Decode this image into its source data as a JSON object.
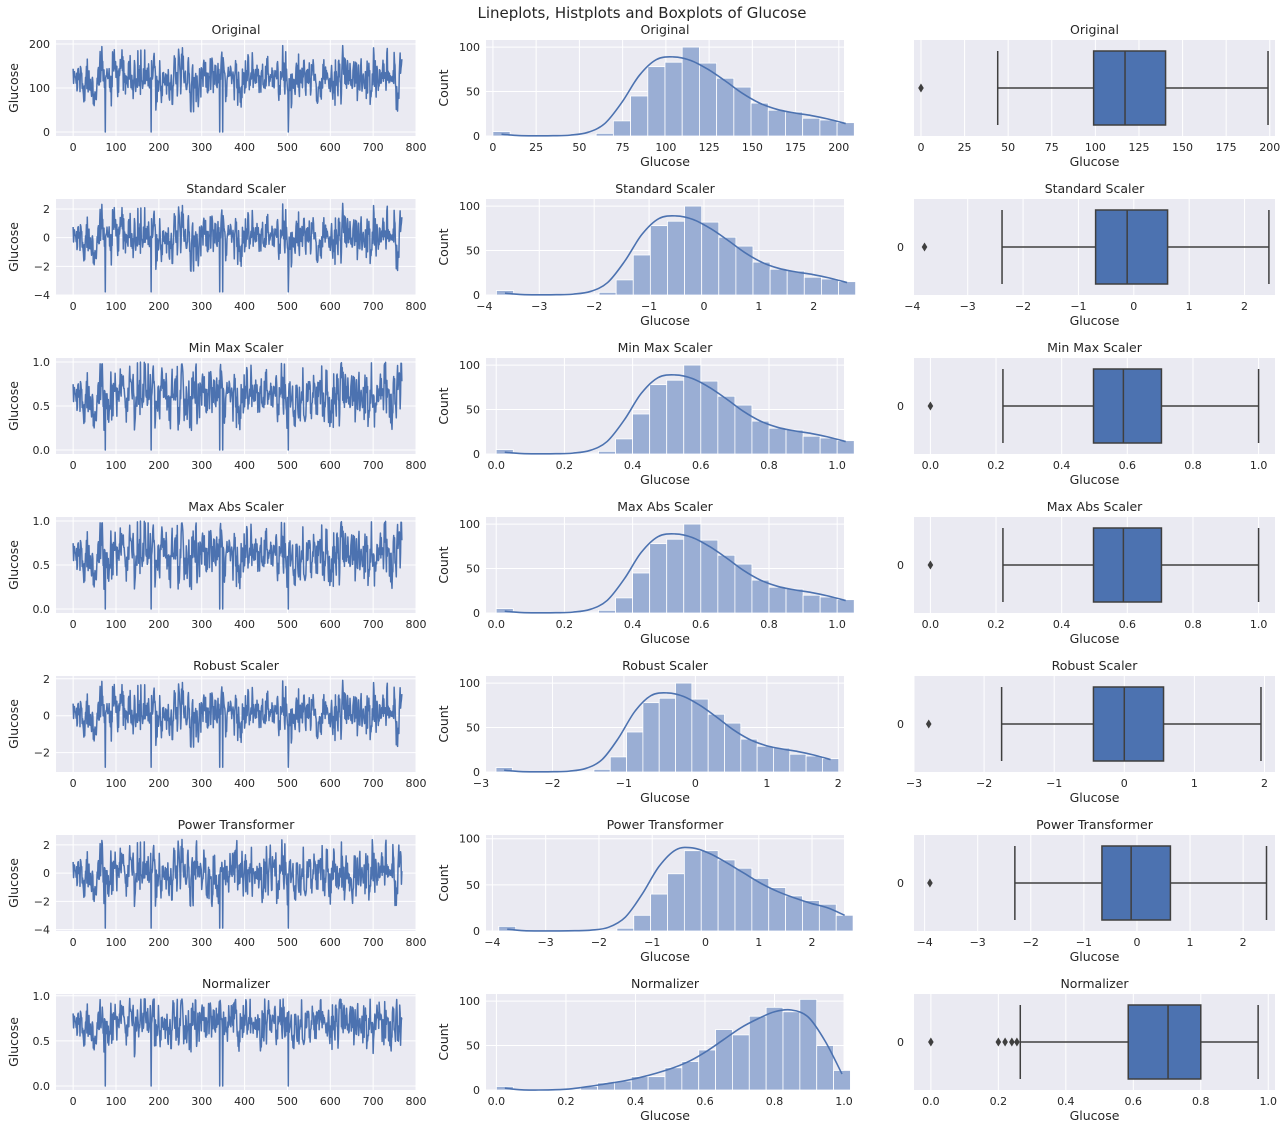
{
  "figure_title": "Lineplots, Histplots and Boxplots of Glucose",
  "colors": {
    "line": "#4c72b0",
    "hist_fill": "#9aaed4",
    "box_fill": "#4c72b0",
    "box_edge": "#3f3f3f",
    "panel_bg": "#eaeaf2",
    "grid": "#ffffff"
  },
  "chart_data": [
    {
      "type": "line",
      "row": 0,
      "title": "Original",
      "ylabel": "Glucose",
      "xlim": [
        -40,
        800
      ],
      "ylim": [
        -9,
        209
      ],
      "xticks": [
        0,
        100,
        200,
        300,
        400,
        500,
        600,
        700,
        800
      ],
      "yticks": [
        0,
        100,
        200
      ],
      "ytick_labels": [
        "0",
        "100",
        "200"
      ],
      "xtick_labels": [
        "0",
        "100",
        "200",
        "300",
        "400",
        "500",
        "600",
        "700",
        "800"
      ],
      "n": 768,
      "center": 120,
      "spread": 27,
      "min": 44,
      "max": 199,
      "zeros_at": [
        75,
        182,
        342,
        349,
        502
      ]
    },
    {
      "type": "line",
      "row": 1,
      "title": "Standard Scaler",
      "ylabel": "Glucose",
      "xlim": [
        -40,
        800
      ],
      "ylim": [
        -4.0,
        2.7
      ],
      "xticks": [
        0,
        100,
        200,
        300,
        400,
        500,
        600,
        700,
        800
      ],
      "yticks": [
        -4,
        -2,
        0,
        2
      ],
      "ytick_labels": [
        "−4",
        "−2",
        "0",
        "2"
      ],
      "xtick_labels": [
        "0",
        "100",
        "200",
        "300",
        "400",
        "500",
        "600",
        "700",
        "800"
      ],
      "n": 768,
      "center": 0,
      "spread": 0.85,
      "min": -2.4,
      "max": 2.44,
      "zeros_at": [
        75,
        182,
        342,
        349,
        502
      ],
      "zero_value": -3.78
    },
    {
      "type": "line",
      "row": 2,
      "title": "Min Max Scaler",
      "ylabel": "Glucose",
      "xlim": [
        -40,
        800
      ],
      "ylim": [
        -0.045,
        1.045
      ],
      "xticks": [
        0,
        100,
        200,
        300,
        400,
        500,
        600,
        700,
        800
      ],
      "yticks": [
        0,
        0.5,
        1
      ],
      "ytick_labels": [
        "0.0",
        "0.5",
        "1.0"
      ],
      "xtick_labels": [
        "0",
        "100",
        "200",
        "300",
        "400",
        "500",
        "600",
        "700",
        "800"
      ],
      "n": 768,
      "center": 0.607,
      "spread": 0.16,
      "min": 0.22,
      "max": 1.0,
      "zeros_at": [
        75,
        182,
        342,
        349,
        502
      ],
      "zero_value": 0
    },
    {
      "type": "line",
      "row": 3,
      "title": "Max Abs Scaler",
      "ylabel": "Glucose",
      "xlim": [
        -40,
        800
      ],
      "ylim": [
        -0.045,
        1.045
      ],
      "xticks": [
        0,
        100,
        200,
        300,
        400,
        500,
        600,
        700,
        800
      ],
      "yticks": [
        0,
        0.5,
        1
      ],
      "ytick_labels": [
        "0.0",
        "0.5",
        "1.0"
      ],
      "xtick_labels": [
        "0",
        "100",
        "200",
        "300",
        "400",
        "500",
        "600",
        "700",
        "800"
      ],
      "n": 768,
      "center": 0.607,
      "spread": 0.16,
      "min": 0.22,
      "max": 1.0,
      "zeros_at": [
        75,
        182,
        342,
        349,
        502
      ],
      "zero_value": 0
    },
    {
      "type": "line",
      "row": 4,
      "title": "Robust Scaler",
      "ylabel": "Glucose",
      "xlim": [
        -40,
        800
      ],
      "ylim": [
        -3.05,
        2.15
      ],
      "xticks": [
        0,
        100,
        200,
        300,
        400,
        500,
        600,
        700,
        800
      ],
      "yticks": [
        -2,
        0,
        2
      ],
      "ytick_labels": [
        "−2",
        "0",
        "2"
      ],
      "xtick_labels": [
        "0",
        "100",
        "200",
        "300",
        "400",
        "500",
        "600",
        "700",
        "800"
      ],
      "n": 768,
      "center": 0.08,
      "spread": 0.65,
      "min": -1.75,
      "max": 1.95,
      "zeros_at": [
        75,
        182,
        342,
        349,
        502
      ],
      "zero_value": -2.79
    },
    {
      "type": "line",
      "row": 5,
      "title": "Power Transformer",
      "ylabel": "Glucose",
      "xlim": [
        -40,
        800
      ],
      "ylim": [
        -4.1,
        2.7
      ],
      "xticks": [
        0,
        100,
        200,
        300,
        400,
        500,
        600,
        700,
        800
      ],
      "yticks": [
        -4,
        -2,
        0,
        2
      ],
      "ytick_labels": [
        "−4",
        "−2",
        "0",
        "2"
      ],
      "xtick_labels": [
        "0",
        "100",
        "200",
        "300",
        "400",
        "500",
        "600",
        "700",
        "800"
      ],
      "n": 768,
      "center": 0,
      "spread": 0.9,
      "min": -2.4,
      "max": 2.45,
      "zeros_at": [
        75,
        182,
        342,
        349,
        502
      ],
      "zero_value": -3.9
    },
    {
      "type": "line",
      "row": 6,
      "title": "Normalizer",
      "ylabel": "Glucose",
      "xlim": [
        -40,
        800
      ],
      "ylim": [
        -0.045,
        1.02
      ],
      "xticks": [
        0,
        100,
        200,
        300,
        400,
        500,
        600,
        700,
        800
      ],
      "yticks": [
        0,
        0.5,
        1
      ],
      "ytick_labels": [
        "0.0",
        "0.5",
        "1.0"
      ],
      "xtick_labels": [
        "0",
        "100",
        "200",
        "300",
        "400",
        "500",
        "600",
        "700",
        "800"
      ],
      "n": 768,
      "center": 0.69,
      "spread": 0.13,
      "min": 0.2,
      "max": 0.97,
      "zeros_at": [
        75,
        182,
        342,
        349,
        502
      ],
      "zero_value": 0
    },
    {
      "type": "bar",
      "row": 0,
      "title": "Original",
      "xlabel": "Glucose",
      "ylabel": "Count",
      "xlim": [
        -4,
        203
      ],
      "ylim": [
        0,
        108
      ],
      "xticks": [
        0,
        25,
        50,
        75,
        100,
        125,
        150,
        175,
        200
      ],
      "xtick_labels": [
        "0",
        "25",
        "50",
        "75",
        "100",
        "125",
        "150",
        "175",
        "200"
      ],
      "yticks": [
        0,
        50,
        100
      ],
      "ytick_labels": [
        "0",
        "50",
        "100"
      ],
      "bin_start": 0,
      "bin_width": 9.95,
      "counts": [
        5,
        0,
        0,
        0,
        0,
        1,
        3,
        17,
        45,
        78,
        83,
        100,
        82,
        65,
        55,
        37,
        29,
        27,
        20,
        18,
        15
      ],
      "kde": [
        2,
        0.5,
        0.2,
        0.3,
        1,
        4,
        14,
        38,
        68,
        86,
        89,
        85,
        75,
        62,
        48,
        37,
        30,
        26,
        23,
        19,
        14
      ]
    },
    {
      "type": "bar",
      "row": 1,
      "title": "Standard Scaler",
      "xlabel": "Glucose",
      "ylabel": "Count",
      "xlim": [
        -3.97,
        2.55
      ],
      "ylim": [
        0,
        108
      ],
      "xticks": [
        -4,
        -3,
        -2,
        -1,
        0,
        1,
        2
      ],
      "xtick_labels": [
        "−4",
        "−3",
        "−2",
        "−1",
        "0",
        "1",
        "2"
      ],
      "yticks": [
        0,
        50,
        100
      ],
      "ytick_labels": [
        "0",
        "50",
        "100"
      ],
      "bin_start": -3.78,
      "bin_width": 0.3115,
      "counts": [
        5,
        0,
        0,
        0,
        0,
        1,
        3,
        17,
        45,
        78,
        83,
        100,
        82,
        65,
        55,
        37,
        29,
        27,
        20,
        18,
        15
      ],
      "kde": [
        2,
        0.5,
        0.2,
        0.3,
        1,
        4,
        14,
        38,
        68,
        86,
        89,
        85,
        75,
        62,
        48,
        37,
        30,
        26,
        23,
        19,
        14
      ]
    },
    {
      "type": "bar",
      "row": 2,
      "title": "Min Max Scaler",
      "xlabel": "Glucose",
      "ylabel": "Count",
      "xlim": [
        -0.03,
        1.02
      ],
      "ylim": [
        0,
        108
      ],
      "xticks": [
        0,
        0.2,
        0.4,
        0.6,
        0.8,
        1.0
      ],
      "xtick_labels": [
        "0.0",
        "0.2",
        "0.4",
        "0.6",
        "0.8",
        "1.0"
      ],
      "yticks": [
        0,
        50,
        100
      ],
      "ytick_labels": [
        "0",
        "50",
        "100"
      ],
      "bin_start": 0,
      "bin_width": 0.05,
      "counts": [
        5,
        0,
        0,
        0,
        0,
        1,
        3,
        17,
        45,
        78,
        83,
        100,
        82,
        65,
        55,
        37,
        29,
        27,
        20,
        18,
        15
      ],
      "kde": [
        2,
        0.5,
        0.2,
        0.3,
        1,
        4,
        14,
        38,
        68,
        86,
        89,
        85,
        75,
        62,
        48,
        37,
        30,
        26,
        23,
        19,
        14
      ]
    },
    {
      "type": "bar",
      "row": 3,
      "title": "Max Abs Scaler",
      "xlabel": "Glucose",
      "ylabel": "Count",
      "xlim": [
        -0.03,
        1.02
      ],
      "ylim": [
        0,
        108
      ],
      "xticks": [
        0,
        0.2,
        0.4,
        0.6,
        0.8,
        1.0
      ],
      "xtick_labels": [
        "0.0",
        "0.2",
        "0.4",
        "0.6",
        "0.8",
        "1.0"
      ],
      "yticks": [
        0,
        50,
        100
      ],
      "ytick_labels": [
        "0",
        "50",
        "100"
      ],
      "bin_start": 0,
      "bin_width": 0.05,
      "counts": [
        5,
        0,
        0,
        0,
        0,
        1,
        3,
        17,
        45,
        78,
        83,
        100,
        82,
        65,
        55,
        37,
        29,
        27,
        20,
        18,
        15
      ],
      "kde": [
        2,
        0.5,
        0.2,
        0.3,
        1,
        4,
        14,
        38,
        68,
        86,
        89,
        85,
        75,
        62,
        48,
        37,
        30,
        26,
        23,
        19,
        14
      ]
    },
    {
      "type": "bar",
      "row": 4,
      "title": "Robust Scaler",
      "xlabel": "Glucose",
      "ylabel": "Count",
      "xlim": [
        -2.93,
        2.08
      ],
      "ylim": [
        0,
        108
      ],
      "xticks": [
        -3,
        -2,
        -1,
        0,
        1,
        2
      ],
      "xtick_labels": [
        "−3",
        "−2",
        "−1",
        "0",
        "1",
        "2"
      ],
      "yticks": [
        0,
        50,
        100
      ],
      "ytick_labels": [
        "0",
        "50",
        "100"
      ],
      "bin_start": -2.79,
      "bin_width": 0.2284,
      "counts": [
        5,
        0,
        0,
        0,
        0,
        1,
        3,
        17,
        45,
        78,
        83,
        100,
        82,
        65,
        55,
        37,
        29,
        27,
        20,
        18,
        15
      ],
      "kde": [
        2,
        0.5,
        0.2,
        0.3,
        1,
        4,
        14,
        38,
        68,
        86,
        89,
        85,
        75,
        62,
        48,
        37,
        30,
        26,
        23,
        19,
        14
      ]
    },
    {
      "type": "bar",
      "row": 5,
      "title": "Power Transformer",
      "xlabel": "Glucose",
      "ylabel": "Count",
      "xlim": [
        -4.12,
        2.6
      ],
      "ylim": [
        0,
        104
      ],
      "xticks": [
        -4,
        -3,
        -2,
        -1,
        0,
        1,
        2
      ],
      "xtick_labels": [
        "−4",
        "−3",
        "−2",
        "−1",
        "0",
        "1",
        "2"
      ],
      "yticks": [
        0,
        50,
        100
      ],
      "ytick_labels": [
        "0",
        "50",
        "100"
      ],
      "bin_start": -3.88,
      "bin_width": 0.3167,
      "counts": [
        5,
        0,
        0,
        0,
        0,
        0,
        1,
        3,
        17,
        40,
        62,
        87,
        87,
        77,
        68,
        57,
        47,
        38,
        33,
        29,
        17
      ],
      "kde": [
        2,
        0.3,
        0.1,
        0.1,
        0.3,
        1,
        4,
        15,
        40,
        70,
        88,
        90,
        84,
        74,
        63,
        52,
        43,
        36,
        30,
        25,
        17
      ]
    },
    {
      "type": "bar",
      "row": 6,
      "title": "Normalizer",
      "xlabel": "Glucose",
      "ylabel": "Count",
      "xlim": [
        -0.03,
        1.0
      ],
      "ylim": [
        0,
        108
      ],
      "xticks": [
        0,
        0.2,
        0.4,
        0.6,
        0.8,
        1.0
      ],
      "xtick_labels": [
        "0.0",
        "0.2",
        "0.4",
        "0.6",
        "0.8",
        "1.0"
      ],
      "yticks": [
        0,
        50,
        100
      ],
      "ytick_labels": [
        "0",
        "50",
        "100"
      ],
      "bin_start": 0,
      "bin_width": 0.0485,
      "counts": [
        4,
        0,
        0,
        0,
        1,
        4,
        8,
        10,
        15,
        15,
        25,
        32,
        45,
        68,
        62,
        83,
        93,
        88,
        102,
        50,
        22
      ],
      "kde": [
        2,
        0.2,
        0,
        0.3,
        1.5,
        4,
        7,
        10,
        14,
        19,
        25,
        33,
        44,
        57,
        70,
        80,
        88,
        90,
        82,
        55,
        18
      ]
    },
    {
      "type": "box",
      "row": 0,
      "title": "Original",
      "xlabel": "Glucose",
      "ylabel": "",
      "ytick_label": "",
      "xlim": [
        -4,
        203
      ],
      "xticks": [
        0,
        25,
        50,
        75,
        100,
        125,
        150,
        175,
        200
      ],
      "xtick_labels": [
        "0",
        "25",
        "50",
        "75",
        "100",
        "125",
        "150",
        "175",
        "200"
      ],
      "whislo": 44,
      "q1": 99,
      "med": 117,
      "q3": 140.25,
      "whishi": 199,
      "fliers": [
        0
      ]
    },
    {
      "type": "box",
      "row": 1,
      "title": "Standard Scaler",
      "xlabel": "Glucose",
      "ylabel": "",
      "ytick_label": "0",
      "xlim": [
        -3.97,
        2.55
      ],
      "xticks": [
        -4,
        -3,
        -2,
        -1,
        0,
        1,
        2
      ],
      "xtick_labels": [
        "−4",
        "−3",
        "−2",
        "−1",
        "0",
        "1",
        "2"
      ],
      "whislo": -2.38,
      "q1": -0.69,
      "med": -0.12,
      "q3": 0.61,
      "whishi": 2.44,
      "fliers": [
        -3.78
      ]
    },
    {
      "type": "box",
      "row": 2,
      "title": "Min Max Scaler",
      "xlabel": "Glucose",
      "ylabel": "",
      "ytick_label": "0",
      "xlim": [
        -0.05,
        1.05
      ],
      "xticks": [
        0,
        0.2,
        0.4,
        0.6,
        0.8,
        1.0
      ],
      "xtick_labels": [
        "0.0",
        "0.2",
        "0.4",
        "0.6",
        "0.8",
        "1.0"
      ],
      "whislo": 0.221,
      "q1": 0.497,
      "med": 0.588,
      "q3": 0.704,
      "whishi": 1.0,
      "fliers": [
        0
      ]
    },
    {
      "type": "box",
      "row": 3,
      "title": "Max Abs Scaler",
      "xlabel": "Glucose",
      "ylabel": "",
      "ytick_label": "0",
      "xlim": [
        -0.05,
        1.05
      ],
      "xticks": [
        0,
        0.2,
        0.4,
        0.6,
        0.8,
        1.0
      ],
      "xtick_labels": [
        "0.0",
        "0.2",
        "0.4",
        "0.6",
        "0.8",
        "1.0"
      ],
      "whislo": 0.221,
      "q1": 0.497,
      "med": 0.588,
      "q3": 0.704,
      "whishi": 1.0,
      "fliers": [
        0
      ]
    },
    {
      "type": "box",
      "row": 4,
      "title": "Robust Scaler",
      "xlabel": "Glucose",
      "ylabel": "",
      "ytick_label": "0",
      "xlim": [
        -3.0,
        2.15
      ],
      "xticks": [
        -3,
        -2,
        -1,
        0,
        1,
        2
      ],
      "xtick_labels": [
        "−3",
        "−2",
        "−1",
        "0",
        "1",
        "2"
      ],
      "whislo": -1.75,
      "q1": -0.44,
      "med": 0,
      "q3": 0.56,
      "whishi": 1.95,
      "fliers": [
        -2.79
      ]
    },
    {
      "type": "box",
      "row": 5,
      "title": "Power Transformer",
      "xlabel": "Glucose",
      "ylabel": "",
      "ytick_label": "0",
      "xlim": [
        -4.2,
        2.6
      ],
      "xticks": [
        -4,
        -3,
        -2,
        -1,
        0,
        1,
        2
      ],
      "xtick_labels": [
        "−4",
        "−3",
        "−2",
        "−1",
        "0",
        "1",
        "2"
      ],
      "whislo": -2.3,
      "q1": -0.66,
      "med": -0.11,
      "q3": 0.63,
      "whishi": 2.44,
      "fliers": [
        -3.9
      ]
    },
    {
      "type": "box",
      "row": 6,
      "title": "Normalizer",
      "xlabel": "Glucose",
      "ylabel": "",
      "ytick_label": "0",
      "xlim": [
        -0.05,
        1.02
      ],
      "xticks": [
        0,
        0.2,
        0.4,
        0.6,
        0.8,
        1.0
      ],
      "xtick_labels": [
        "0.0",
        "0.2",
        "0.4",
        "0.6",
        "0.8",
        "1.0"
      ],
      "whislo": 0.265,
      "q1": 0.585,
      "med": 0.703,
      "q3": 0.8,
      "whishi": 0.97,
      "fliers": [
        0,
        0.2,
        0.22,
        0.24,
        0.255
      ]
    }
  ]
}
